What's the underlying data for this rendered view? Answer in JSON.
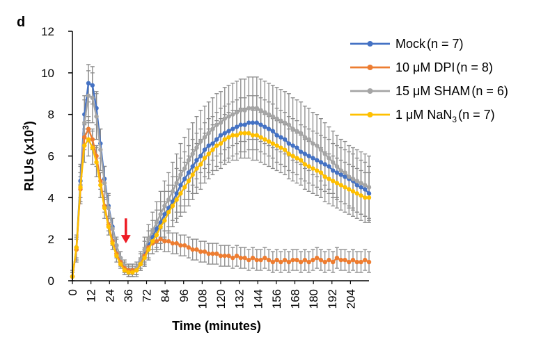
{
  "panel_label": "d",
  "chart_data": {
    "type": "line",
    "xlabel": "Time (minutes)",
    "ylabel_main": "RLUs (x10",
    "ylabel_sup": "3",
    "ylabel_tail": ")",
    "ylim": [
      0,
      12
    ],
    "yticks": [
      0,
      2,
      4,
      6,
      8,
      10,
      12
    ],
    "xticks": [
      "0",
      "12",
      "24",
      "36",
      "72",
      "84",
      "96",
      "108",
      "120",
      "132",
      "144",
      "156",
      "168",
      "180",
      "192",
      "204"
    ],
    "x": [
      0,
      3,
      6,
      9,
      12,
      15,
      18,
      21,
      24,
      27,
      30,
      33,
      36,
      39,
      42,
      45,
      48,
      51,
      54,
      57,
      60,
      63,
      66,
      69,
      72,
      75,
      78,
      81,
      84,
      87,
      90,
      93,
      96,
      99,
      102,
      105,
      108,
      111,
      114,
      117,
      120,
      123,
      126,
      129,
      132,
      135,
      138,
      141,
      144,
      147,
      150,
      153,
      156,
      159,
      162,
      165,
      168,
      171,
      174,
      177,
      180,
      183,
      186,
      189,
      192,
      195,
      198,
      201,
      204,
      207,
      210,
      213,
      216,
      219,
      222
    ],
    "annotation": {
      "type": "arrow",
      "color": "#ee1c25",
      "at_x": 40,
      "from_y": 3.0,
      "to_y": 1.8
    },
    "legend_position": "top-right",
    "series": [
      {
        "name": "Mock",
        "n_label": "(n = 7)",
        "color": "#4472c4",
        "errcolor": "#8a8a8a",
        "values": [
          0.2,
          1.6,
          4.8,
          8.0,
          9.5,
          9.4,
          8.3,
          6.6,
          4.9,
          3.6,
          2.6,
          1.7,
          1.1,
          0.6,
          0.5,
          0.5,
          0.5,
          0.9,
          1.3,
          1.7,
          2.1,
          2.5,
          2.8,
          3.2,
          3.5,
          3.8,
          4.2,
          4.6,
          4.9,
          5.2,
          5.5,
          5.8,
          6.0,
          6.3,
          6.5,
          6.6,
          6.8,
          7.0,
          7.1,
          7.2,
          7.3,
          7.4,
          7.5,
          7.5,
          7.6,
          7.6,
          7.6,
          7.5,
          7.4,
          7.3,
          7.2,
          7.0,
          6.9,
          6.8,
          6.6,
          6.5,
          6.4,
          6.2,
          6.1,
          6.0,
          5.9,
          5.8,
          5.7,
          5.6,
          5.5,
          5.3,
          5.2,
          5.1,
          5.0,
          4.9,
          4.8,
          4.6,
          4.5,
          4.4,
          4.2
        ],
        "errors": [
          0.3,
          0.6,
          0.8,
          0.9,
          0.9,
          0.9,
          0.8,
          0.7,
          0.6,
          0.5,
          0.4,
          0.3,
          0.3,
          0.3,
          0.3,
          0.3,
          0.3,
          0.4,
          0.6,
          0.7,
          0.8,
          0.9,
          1.0,
          1.1,
          1.1,
          1.2,
          1.2,
          1.3,
          1.3,
          1.3,
          1.3,
          1.3,
          1.3,
          1.3,
          1.3,
          1.3,
          1.3,
          1.3,
          1.3,
          1.3,
          1.3,
          1.3,
          1.3,
          1.3,
          1.3,
          1.3,
          1.3,
          1.3,
          1.3,
          1.3,
          1.3,
          1.3,
          1.3,
          1.3,
          1.3,
          1.3,
          1.3,
          1.3,
          1.3,
          1.3,
          1.3,
          1.3,
          1.3,
          1.3,
          1.3,
          1.3,
          1.3,
          1.3,
          1.3,
          1.3,
          1.3,
          1.3,
          1.3,
          1.3,
          1.3
        ]
      },
      {
        "name": "10 μM DPI",
        "n_label": "(n = 8)",
        "color": "#ed7d31",
        "errcolor": "#8a8a8a",
        "values": [
          0.2,
          1.5,
          4.4,
          6.9,
          7.3,
          6.8,
          6.0,
          4.8,
          3.6,
          2.7,
          1.9,
          1.3,
          0.9,
          0.6,
          0.5,
          0.5,
          0.5,
          0.8,
          1.2,
          1.6,
          1.8,
          1.9,
          2.0,
          1.9,
          1.9,
          1.8,
          1.8,
          1.7,
          1.7,
          1.6,
          1.5,
          1.5,
          1.4,
          1.4,
          1.3,
          1.3,
          1.3,
          1.2,
          1.2,
          1.2,
          1.1,
          1.2,
          1.1,
          1.1,
          1.0,
          1.1,
          1.0,
          1.0,
          1.1,
          1.0,
          0.9,
          1.0,
          0.9,
          1.0,
          0.9,
          1.0,
          1.0,
          0.9,
          1.0,
          0.9,
          1.0,
          1.1,
          1.0,
          0.9,
          1.0,
          0.9,
          1.1,
          1.0,
          1.0,
          0.9,
          1.0,
          0.9,
          0.9,
          1.0,
          0.9
        ],
        "errors": [
          0.2,
          0.5,
          0.6,
          0.6,
          0.6,
          0.5,
          0.5,
          0.4,
          0.3,
          0.3,
          0.2,
          0.2,
          0.2,
          0.2,
          0.2,
          0.2,
          0.2,
          0.3,
          0.4,
          0.5,
          0.5,
          0.5,
          0.5,
          0.5,
          0.5,
          0.5,
          0.5,
          0.5,
          0.5,
          0.5,
          0.5,
          0.5,
          0.5,
          0.5,
          0.5,
          0.5,
          0.5,
          0.5,
          0.5,
          0.5,
          0.5,
          0.5,
          0.5,
          0.5,
          0.5,
          0.5,
          0.5,
          0.5,
          0.5,
          0.5,
          0.5,
          0.5,
          0.5,
          0.5,
          0.5,
          0.5,
          0.5,
          0.5,
          0.5,
          0.5,
          0.5,
          0.5,
          0.5,
          0.5,
          0.5,
          0.5,
          0.5,
          0.5,
          0.5,
          0.5,
          0.5,
          0.5,
          0.5,
          0.5,
          0.5
        ]
      },
      {
        "name": "15 μM SHAM",
        "n_label": "(n = 6)",
        "color": "#a5a5a5",
        "errcolor": "#8a8a8a",
        "values": [
          0.2,
          1.5,
          4.6,
          7.6,
          8.9,
          8.8,
          7.9,
          6.3,
          4.7,
          3.5,
          2.5,
          1.7,
          1.1,
          0.7,
          0.5,
          0.5,
          0.6,
          1.0,
          1.5,
          2.0,
          2.4,
          2.8,
          3.2,
          3.6,
          3.9,
          4.3,
          4.7,
          5.1,
          5.4,
          5.8,
          6.1,
          6.4,
          6.7,
          6.9,
          7.1,
          7.3,
          7.5,
          7.6,
          7.8,
          7.9,
          8.0,
          8.1,
          8.2,
          8.2,
          8.3,
          8.3,
          8.3,
          8.2,
          8.1,
          8.0,
          7.9,
          7.8,
          7.7,
          7.6,
          7.5,
          7.3,
          7.2,
          7.1,
          6.9,
          6.8,
          6.6,
          6.5,
          6.3,
          6.1,
          5.9,
          5.7,
          5.5,
          5.3,
          5.2,
          5.0,
          4.9,
          4.8,
          4.7,
          4.6,
          4.5
        ],
        "errors": [
          0.3,
          0.6,
          0.9,
          1.1,
          1.2,
          1.2,
          1.1,
          1.0,
          0.8,
          0.7,
          0.5,
          0.4,
          0.3,
          0.3,
          0.3,
          0.3,
          0.3,
          0.4,
          0.6,
          0.7,
          0.9,
          1.0,
          1.1,
          1.2,
          1.3,
          1.4,
          1.4,
          1.5,
          1.5,
          1.5,
          1.5,
          1.5,
          1.5,
          1.5,
          1.5,
          1.5,
          1.5,
          1.5,
          1.5,
          1.5,
          1.5,
          1.5,
          1.5,
          1.5,
          1.5,
          1.5,
          1.5,
          1.5,
          1.5,
          1.5,
          1.5,
          1.5,
          1.5,
          1.5,
          1.5,
          1.5,
          1.5,
          1.5,
          1.5,
          1.5,
          1.5,
          1.5,
          1.5,
          1.5,
          1.5,
          1.5,
          1.5,
          1.5,
          1.5,
          1.5,
          1.5,
          1.5,
          1.5,
          1.5,
          1.5
        ]
      },
      {
        "name": "1 μM NaN",
        "name_sub": "3",
        "n_label": "(n = 7)",
        "color": "#ffc000",
        "errcolor": "#8a8a8a",
        "values": [
          0.2,
          1.6,
          4.5,
          6.5,
          6.8,
          6.4,
          5.7,
          4.6,
          3.5,
          2.6,
          1.8,
          1.2,
          0.8,
          0.5,
          0.4,
          0.4,
          0.5,
          0.8,
          1.1,
          1.5,
          1.9,
          2.2,
          2.6,
          2.9,
          3.3,
          3.6,
          3.9,
          4.2,
          4.5,
          4.8,
          5.1,
          5.4,
          5.6,
          5.9,
          6.1,
          6.3,
          6.5,
          6.6,
          6.8,
          6.9,
          7.0,
          7.0,
          7.1,
          7.1,
          7.1,
          7.0,
          7.0,
          6.9,
          6.8,
          6.7,
          6.6,
          6.5,
          6.4,
          6.3,
          6.1,
          6.0,
          5.9,
          5.8,
          5.6,
          5.5,
          5.4,
          5.3,
          5.2,
          5.0,
          4.9,
          4.8,
          4.7,
          4.6,
          4.5,
          4.4,
          4.3,
          4.2,
          4.1,
          4.0,
          4.0
        ],
        "errors": [
          0.2,
          0.5,
          0.7,
          0.8,
          0.8,
          0.8,
          0.7,
          0.6,
          0.5,
          0.4,
          0.3,
          0.3,
          0.2,
          0.2,
          0.2,
          0.2,
          0.2,
          0.3,
          0.4,
          0.5,
          0.6,
          0.7,
          0.8,
          0.9,
          1.0,
          1.0,
          1.1,
          1.1,
          1.2,
          1.2,
          1.2,
          1.2,
          1.2,
          1.2,
          1.2,
          1.2,
          1.2,
          1.2,
          1.2,
          1.2,
          1.2,
          1.2,
          1.2,
          1.2,
          1.2,
          1.2,
          1.2,
          1.2,
          1.2,
          1.2,
          1.2,
          1.2,
          1.2,
          1.2,
          1.2,
          1.2,
          1.2,
          1.2,
          1.2,
          1.2,
          1.2,
          1.2,
          1.2,
          1.2,
          1.2,
          1.2,
          1.2,
          1.2,
          1.2,
          1.2,
          1.2,
          1.2,
          1.2,
          1.2,
          1.2
        ]
      }
    ]
  }
}
